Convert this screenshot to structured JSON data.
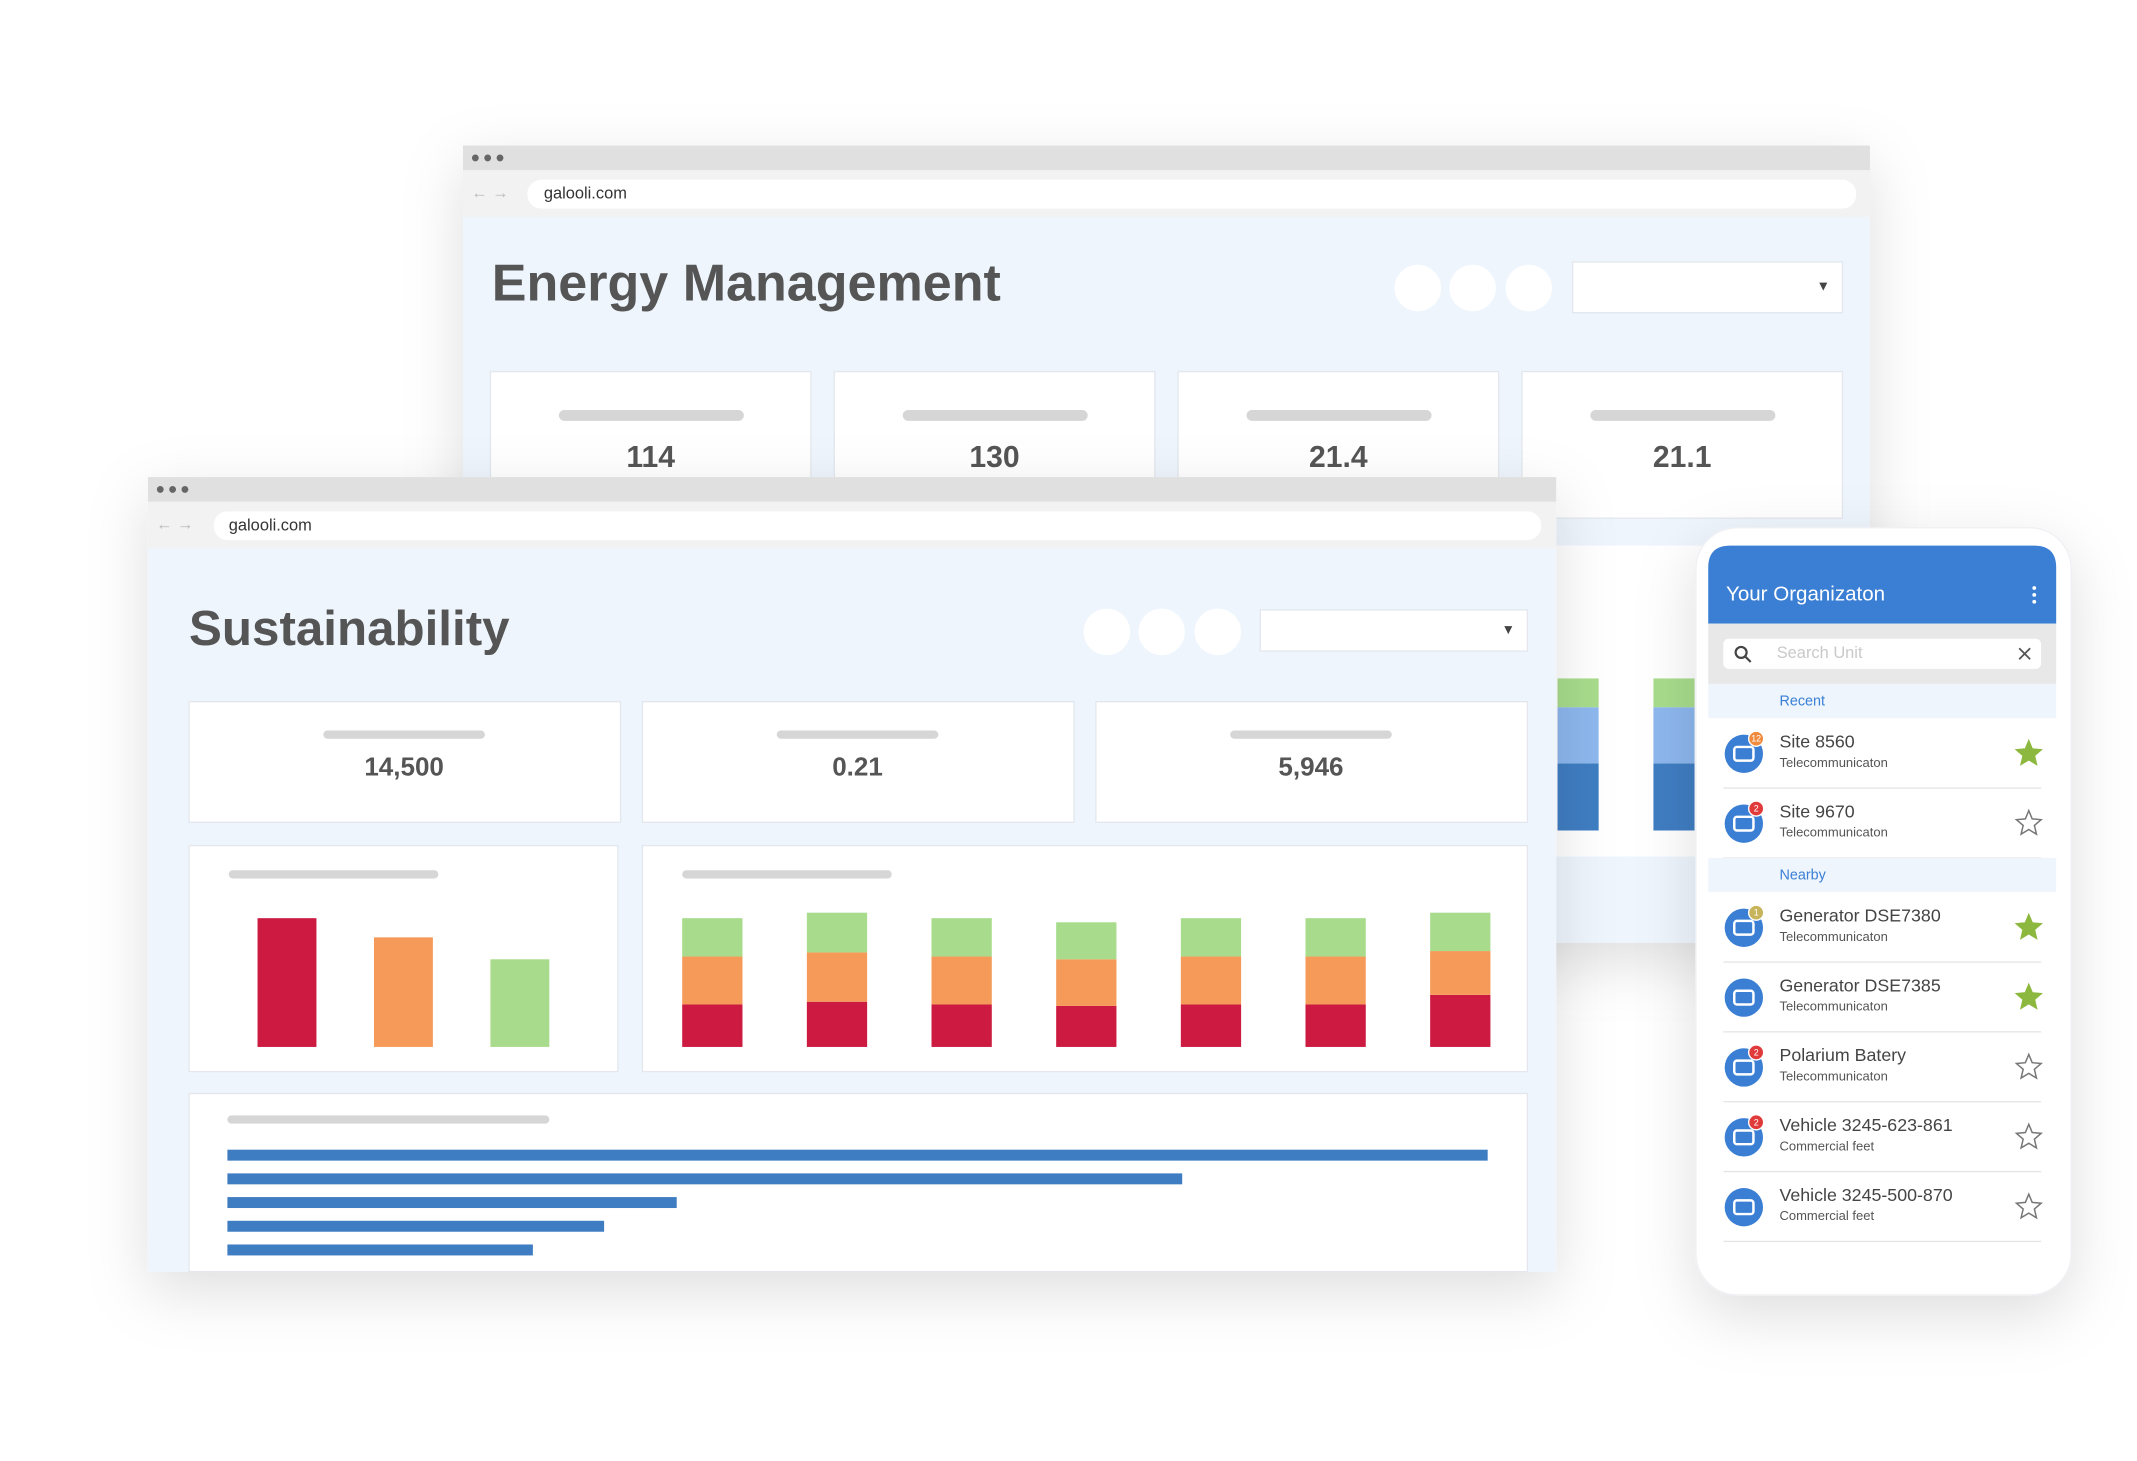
{
  "energy_window": {
    "url": "galooli.com",
    "title": "Energy Management",
    "kpis": [
      "114",
      "130",
      "21.4",
      "21.1"
    ],
    "chart": {
      "type": "stacked_bar",
      "series": [
        {
          "color": "#3f7dc2",
          "values": [
            49,
            49
          ]
        },
        {
          "color": "#8db7ee",
          "values": [
            41,
            41
          ]
        },
        {
          "color": "#a8dc8c",
          "values": [
            21,
            21
          ]
        }
      ]
    }
  },
  "sustainability_window": {
    "url": "galooli.com",
    "title": "Sustainability",
    "kpis": [
      "14,500",
      "0.21",
      "5,946"
    ],
    "bar_chart": {
      "type": "bar",
      "values": [
        94,
        80,
        64
      ],
      "colors": [
        "#cc1a40",
        "#f59a58",
        "#a8dc8c"
      ]
    },
    "stacked_chart": {
      "type": "stacked_bar",
      "series": [
        {
          "color": "#cc1a40",
          "values": [
            31,
            33,
            31,
            30,
            31,
            31,
            38
          ]
        },
        {
          "color": "#f59a58",
          "values": [
            35,
            36,
            35,
            34,
            35,
            35,
            32
          ]
        },
        {
          "color": "#a8dc8c",
          "values": [
            28,
            29,
            28,
            27,
            28,
            28,
            28
          ]
        }
      ]
    },
    "hbar_chart": {
      "type": "hbar",
      "color": "#3f7dc2",
      "values": [
        920,
        697,
        328,
        275,
        223
      ]
    }
  },
  "mobile": {
    "title": "Your Organizaton",
    "search_placeholder": "Search Unit",
    "sections": [
      {
        "label": "Recent",
        "items": [
          {
            "name": "Site 8560",
            "subtitle": "Telecommunicaton",
            "badge": 12,
            "badge_color": "#f08a3c",
            "starred": true
          },
          {
            "name": "Site 9670",
            "subtitle": "Telecommunicaton",
            "badge": 2,
            "badge_color": "#e03a3a",
            "starred": false
          }
        ]
      },
      {
        "label": "Nearby",
        "items": [
          {
            "name": "Generator DSE7380",
            "subtitle": "Telecommunicaton",
            "badge": 1,
            "badge_color": "#c8b45a",
            "starred": true
          },
          {
            "name": "Generator DSE7385",
            "subtitle": "Telecommunicaton",
            "starred": true
          },
          {
            "name": "Polarium Batery",
            "subtitle": "Telecommunicaton",
            "badge": 2,
            "badge_color": "#e03a3a",
            "starred": false
          },
          {
            "name": "Vehicle  3245-623-861",
            "subtitle": "Commercial feet",
            "badge": 2,
            "badge_color": "#e03a3a",
            "starred": false
          },
          {
            "name": "Vehicle  3245-500-870",
            "subtitle": "Commercial feet",
            "starred": false
          }
        ]
      }
    ]
  }
}
